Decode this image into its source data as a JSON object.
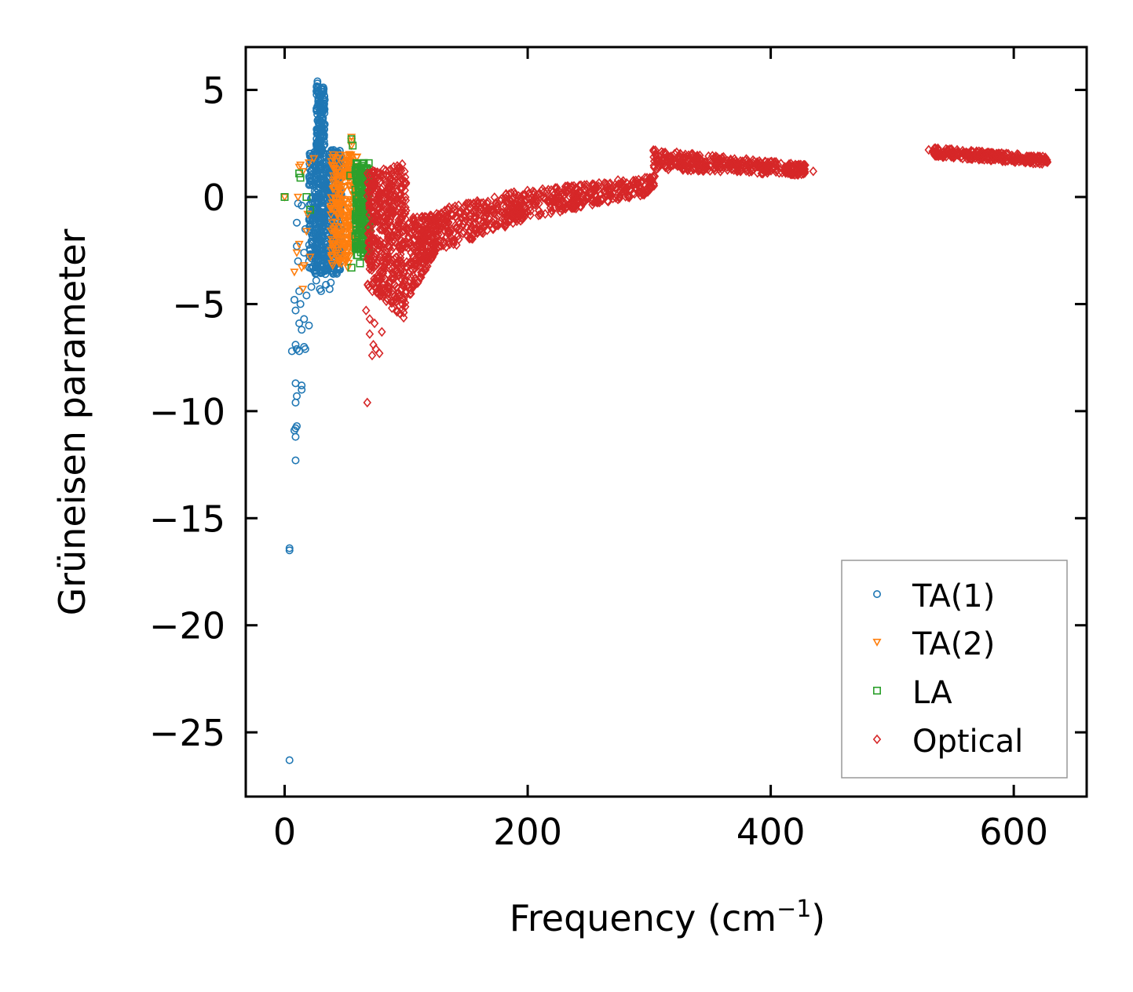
{
  "chart_data": {
    "type": "scatter",
    "title": "",
    "xlabel": "Frequency (cm",
    "xlabel_sup": "−1",
    "xlabel_close": ")",
    "ylabel": "Grüneisen parameter",
    "xlim": [
      -32,
      660
    ],
    "ylim": [
      -28,
      7
    ],
    "xticks": [
      0,
      200,
      400,
      600
    ],
    "xtick_labels": [
      "0",
      "200",
      "400",
      "600"
    ],
    "yticks": [
      5,
      0,
      -5,
      -10,
      -15,
      -20,
      -25
    ],
    "ytick_labels": [
      "5",
      "0",
      "−5",
      "−10",
      "−15",
      "−20",
      "−25"
    ],
    "grid": false,
    "legend_position": "lower-right",
    "series": [
      {
        "name": "TA(1)",
        "marker": "circle",
        "color": "#1f77b4",
        "points": [
          [
            4,
            -26.3
          ],
          [
            4,
            -16.4
          ],
          [
            4,
            -16.5
          ],
          [
            9,
            -12.3
          ],
          [
            9,
            -11.2
          ],
          [
            9,
            -10.8
          ],
          [
            10,
            -10.7
          ],
          [
            8,
            -10.9
          ],
          [
            9,
            -9.6
          ],
          [
            10,
            -9.3
          ],
          [
            14,
            -9.0
          ],
          [
            14,
            -8.8
          ],
          [
            9,
            -8.7
          ],
          [
            6,
            -7.2
          ],
          [
            10,
            -7.1
          ],
          [
            12,
            -7.2
          ],
          [
            16,
            -7.0
          ],
          [
            17,
            -7.1
          ],
          [
            9,
            -6.9
          ],
          [
            14,
            -6.2
          ],
          [
            12,
            -5.9
          ],
          [
            16,
            -5.7
          ],
          [
            20,
            -6.0
          ],
          [
            9,
            -5.3
          ],
          [
            13,
            -5.0
          ],
          [
            8,
            -4.8
          ],
          [
            18,
            -4.6
          ],
          [
            12,
            -4.4
          ],
          [
            22,
            -4.2
          ],
          [
            26,
            -3.9
          ],
          [
            29,
            -4.3
          ],
          [
            34,
            -4.1
          ],
          [
            11,
            -3.0
          ],
          [
            10,
            -2.3
          ],
          [
            10,
            -1.2
          ],
          [
            14,
            -0.4
          ],
          [
            11,
            -0.3
          ],
          [
            17,
            -1.5
          ],
          [
            16,
            -2.6
          ],
          [
            30,
            -4.4
          ],
          [
            37,
            -4.3
          ],
          [
            38,
            -4.0
          ],
          [
            25,
            -3.4
          ],
          [
            36,
            -3.1
          ],
          [
            41,
            -2.5
          ],
          [
            43,
            -2.6
          ],
          [
            27,
            5.4
          ],
          [
            27,
            5.3
          ],
          [
            28,
            4.8
          ],
          [
            28,
            4.5
          ],
          [
            29,
            4.0
          ],
          [
            29,
            3.6
          ],
          [
            30,
            3.2
          ],
          [
            31,
            2.8
          ],
          [
            32,
            2.4
          ]
        ],
        "dense_region": {
          "x": [
            20,
            47
          ],
          "y": [
            -3.6,
            2.2
          ],
          "count": 600
        },
        "dense_upper": {
          "x": [
            26,
            33
          ],
          "y": [
            2.0,
            5.2
          ],
          "count": 140
        }
      },
      {
        "name": "TA(2)",
        "marker": "triangle-down",
        "color": "#ff7f0e",
        "points": [
          [
            0,
            0.0
          ],
          [
            12,
            1.4
          ],
          [
            13,
            1.5
          ],
          [
            15,
            1.2
          ],
          [
            20,
            1.6
          ],
          [
            24,
            1.8
          ],
          [
            11,
            0.0
          ],
          [
            8,
            -3.5
          ],
          [
            10,
            -2.6
          ],
          [
            12,
            -2.2
          ],
          [
            14,
            -3.3
          ],
          [
            15,
            -4.3
          ],
          [
            18,
            -1.6
          ],
          [
            19,
            -0.8
          ],
          [
            21,
            -2.8
          ],
          [
            16,
            -3.2
          ],
          [
            55,
            2.8
          ],
          [
            55,
            2.6
          ],
          [
            55,
            2.4
          ],
          [
            54,
            1.7
          ],
          [
            52,
            1.2
          ],
          [
            58,
            0.5
          ],
          [
            57,
            -0.8
          ],
          [
            56,
            -2.1
          ],
          [
            52,
            -3.3
          ],
          [
            50,
            -2.4
          ],
          [
            46,
            -3.0
          ],
          [
            48,
            0.9
          ]
        ],
        "dense_region": {
          "x": [
            38,
            60
          ],
          "y": [
            -3.2,
            2.0
          ],
          "count": 260
        }
      },
      {
        "name": "LA",
        "marker": "square",
        "color": "#2ca02c",
        "points": [
          [
            0,
            0.0
          ],
          [
            12,
            1.1
          ],
          [
            13,
            0.9
          ],
          [
            18,
            0.0
          ],
          [
            21,
            -0.6
          ],
          [
            55,
            2.7
          ],
          [
            56,
            2.4
          ],
          [
            54,
            1.0
          ],
          [
            59,
            0.8
          ],
          [
            61,
            0.4
          ],
          [
            63,
            -0.1
          ],
          [
            60,
            -1.7
          ],
          [
            62,
            -2.4
          ],
          [
            64,
            -2.0
          ],
          [
            62,
            -3.1
          ],
          [
            55,
            -3.3
          ]
        ],
        "dense_region": {
          "x": [
            58,
            70
          ],
          "y": [
            -2.8,
            1.6
          ],
          "count": 200
        }
      },
      {
        "name": "Optical",
        "marker": "diamond",
        "color": "#d62728",
        "points": [
          [
            68,
            -9.6
          ],
          [
            67,
            -5.3
          ],
          [
            70,
            -5.7
          ],
          [
            70,
            -6.4
          ],
          [
            73,
            -6.9
          ],
          [
            75,
            -7.1
          ],
          [
            72,
            -7.4
          ],
          [
            78,
            -7.3
          ],
          [
            80,
            -6.3
          ],
          [
            74,
            -5.9
          ],
          [
            375,
            1.2
          ],
          [
            435,
            1.2
          ],
          [
            428,
            1.3
          ],
          [
            415,
            1.4
          ],
          [
            318,
            1.9
          ],
          [
            530,
            2.2
          ]
        ],
        "bands": [
          {
            "x0": 68,
            "x1": 100,
            "ylo0": -4.2,
            "ylo1": -5.8,
            "yhi0": 1.2,
            "yhi1": 1.6,
            "count": 500
          },
          {
            "x0": 100,
            "x1": 125,
            "ylo0": -5.0,
            "ylo1": -2.5,
            "yhi0": -1.0,
            "yhi1": -0.8,
            "count": 220
          },
          {
            "x0": 125,
            "x1": 200,
            "ylo0": -2.6,
            "ylo1": -1.0,
            "yhi0": -0.6,
            "yhi1": 0.4,
            "count": 300
          },
          {
            "x0": 200,
            "x1": 305,
            "ylo0": -1.0,
            "ylo1": 0.2,
            "yhi0": 0.3,
            "yhi1": 1.0,
            "count": 320
          },
          {
            "x0": 303,
            "x1": 430,
            "ylo0": 1.3,
            "ylo1": 1.0,
            "yhi0": 2.2,
            "yhi1": 1.5,
            "count": 360
          },
          {
            "x0": 533,
            "x1": 628,
            "ylo0": 1.9,
            "ylo1": 1.5,
            "yhi0": 2.3,
            "yhi1": 1.9,
            "count": 280
          }
        ]
      }
    ]
  }
}
